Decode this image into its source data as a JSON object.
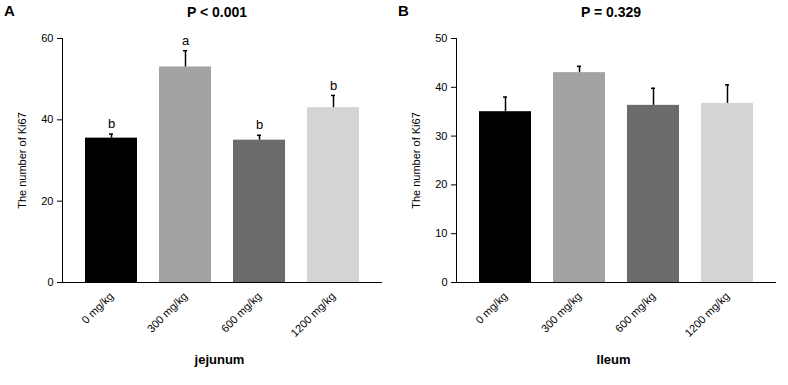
{
  "chart_data": [
    {
      "type": "bar",
      "panel": "A",
      "title": "P < 0.001",
      "x_label": "jejunum",
      "y_label": "The number of Ki67",
      "categories": [
        "0 mg/kg",
        "300 mg/kg",
        "600 mg/kg",
        "1200 mg/kg"
      ],
      "values": [
        35.5,
        53,
        35,
        43
      ],
      "errors": [
        1,
        4,
        1.2,
        3
      ],
      "letters": [
        "b",
        "a",
        "b",
        "b"
      ],
      "colors": [
        "#000000",
        "#a3a3a3",
        "#6b6b6b",
        "#d4d4d4"
      ],
      "ylim": [
        0,
        60
      ],
      "yticks": [
        0,
        20,
        40,
        60
      ]
    },
    {
      "type": "bar",
      "panel": "B",
      "title": "P = 0.329",
      "x_label": "Ileum",
      "y_label": "The number of Ki67",
      "categories": [
        "0 mg/kg",
        "300 mg/kg",
        "600 mg/kg",
        "1200 mg/kg"
      ],
      "values": [
        35,
        43,
        36.3,
        36.7
      ],
      "errors": [
        3,
        1.3,
        3.5,
        3.8
      ],
      "colors": [
        "#000000",
        "#a3a3a3",
        "#6b6b6b",
        "#d4d4d4"
      ],
      "ylim": [
        0,
        50
      ],
      "yticks": [
        0,
        10,
        20,
        30,
        40,
        50
      ]
    }
  ]
}
